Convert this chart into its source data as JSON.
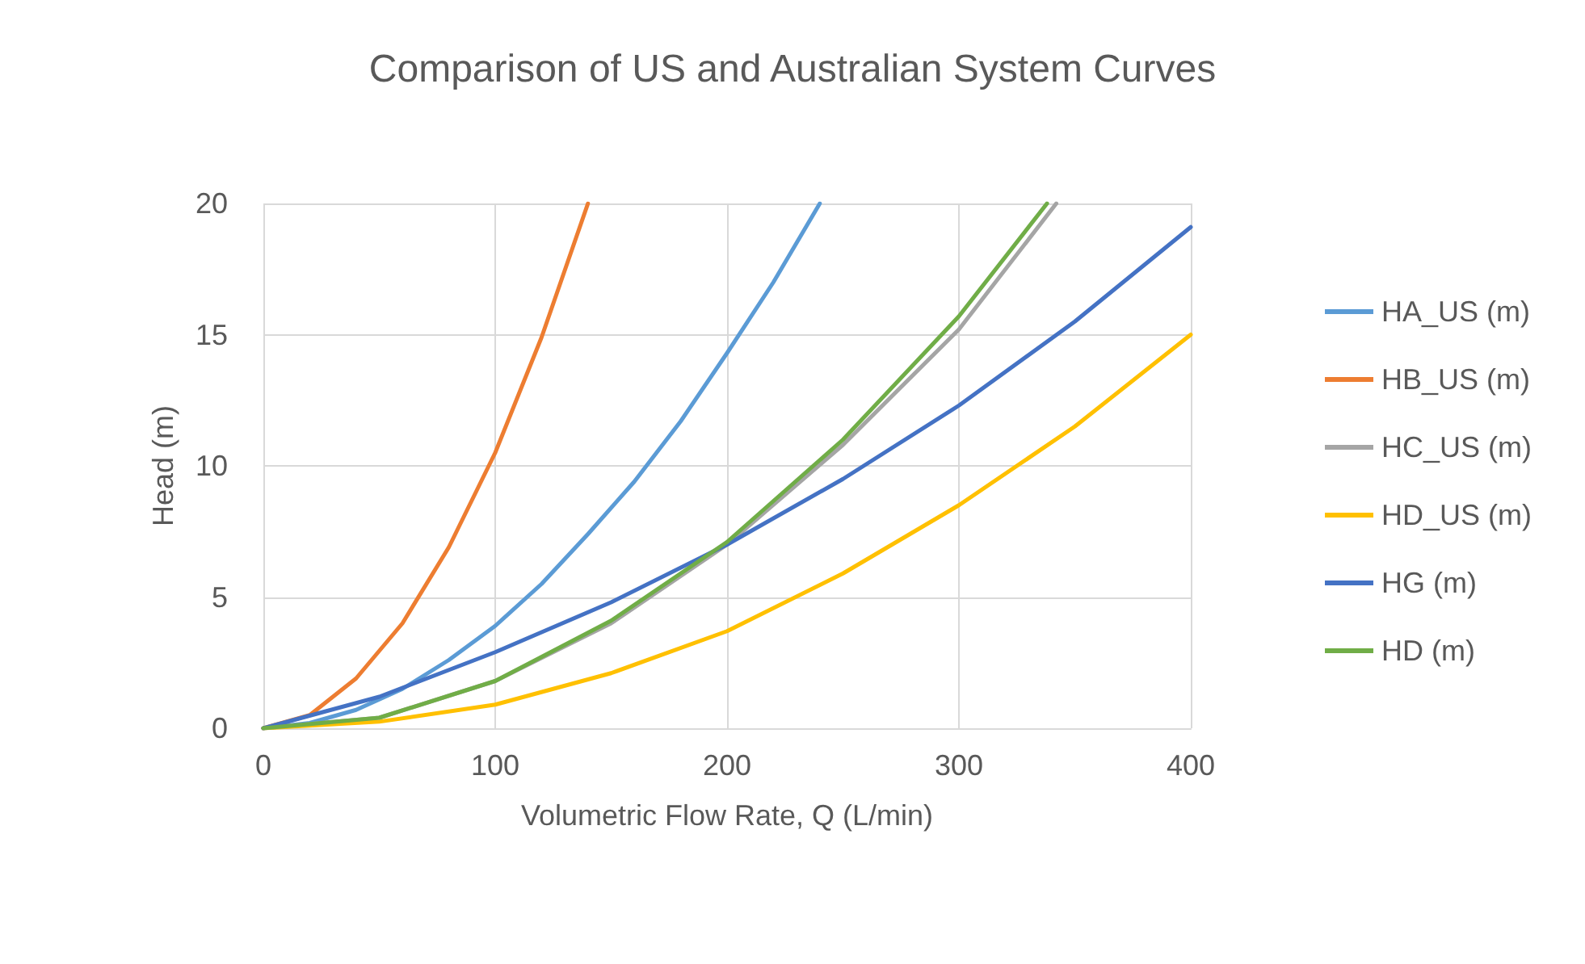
{
  "chart_data": {
    "type": "line",
    "title": "Comparison of US and Australian System Curves",
    "xlabel": "Volumetric Flow Rate, Q (L/min)",
    "ylabel": "Head (m)",
    "xlim": [
      0,
      400
    ],
    "xticks": [
      0,
      100,
      200,
      300,
      400
    ],
    "ylim": [
      0,
      20
    ],
    "yticks": [
      0,
      5,
      10,
      15,
      20
    ],
    "grid": true,
    "legend": "right",
    "marker": "none",
    "line_style": "solid",
    "series": [
      {
        "name": "HA_US (m)",
        "color": "#5b9bd5",
        "x": [
          0,
          20,
          40,
          60,
          80,
          100,
          120,
          140,
          160,
          180,
          200,
          220,
          240
        ],
        "values": [
          0,
          0.2,
          0.7,
          1.5,
          2.6,
          3.9,
          5.5,
          7.4,
          9.4,
          11.7,
          14.3,
          17.0,
          20
        ]
      },
      {
        "name": "HB_US (m)",
        "color": "#ed7d31",
        "x": [
          0,
          20,
          40,
          60,
          80,
          100,
          120,
          140
        ],
        "values": [
          0,
          0.5,
          1.9,
          4.0,
          6.9,
          10.5,
          14.9,
          20
        ]
      },
      {
        "name": "HC_US (m)",
        "color": "#a5a5a5",
        "x": [
          0,
          50,
          100,
          150,
          200,
          250,
          300,
          342
        ],
        "values": [
          0,
          0.4,
          1.8,
          4.0,
          7.0,
          10.8,
          15.2,
          20
        ]
      },
      {
        "name": "HD_US (m)",
        "color": "#ffc000",
        "x": [
          0,
          50,
          100,
          150,
          200,
          250,
          300,
          350,
          400
        ],
        "values": [
          0,
          0.25,
          0.9,
          2.1,
          3.7,
          5.9,
          8.5,
          11.5,
          15
        ]
      },
      {
        "name": "HG (m)",
        "color": "#4472c4",
        "x": [
          0,
          50,
          100,
          150,
          200,
          250,
          300,
          350,
          400
        ],
        "values": [
          0,
          1.2,
          2.9,
          4.8,
          7.0,
          9.5,
          12.3,
          15.5,
          19.1
        ]
      },
      {
        "name": "HD (m)",
        "color": "#70ad47",
        "x": [
          0,
          50,
          100,
          150,
          200,
          250,
          300,
          338
        ],
        "values": [
          0,
          0.4,
          1.8,
          4.1,
          7.1,
          11.0,
          15.7,
          20
        ]
      }
    ]
  }
}
